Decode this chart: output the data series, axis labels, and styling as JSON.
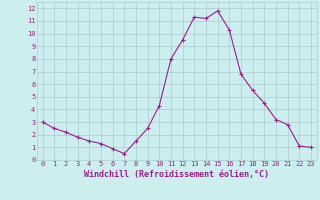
{
  "x": [
    0,
    1,
    2,
    3,
    4,
    5,
    6,
    7,
    8,
    9,
    10,
    11,
    12,
    13,
    14,
    15,
    16,
    17,
    18,
    19,
    20,
    21,
    22,
    23
  ],
  "y": [
    3.0,
    2.5,
    2.2,
    1.8,
    1.5,
    1.3,
    0.9,
    0.5,
    1.5,
    2.5,
    4.3,
    8.0,
    9.5,
    11.3,
    11.2,
    11.8,
    10.3,
    6.8,
    5.5,
    4.5,
    3.2,
    2.8,
    1.1,
    1.0
  ],
  "xlim": [
    -0.5,
    23.5
  ],
  "ylim": [
    0,
    12.5
  ],
  "xticks": [
    0,
    1,
    2,
    3,
    4,
    5,
    6,
    7,
    8,
    9,
    10,
    11,
    12,
    13,
    14,
    15,
    16,
    17,
    18,
    19,
    20,
    21,
    22,
    23
  ],
  "yticks": [
    0,
    1,
    2,
    3,
    4,
    5,
    6,
    7,
    8,
    9,
    10,
    11,
    12
  ],
  "xlabel": "Windchill (Refroidissement éolien,°C)",
  "line_color": "#9b1e8a",
  "marker": "+",
  "background_color": "#cceeee",
  "grid_color": "#aacccc",
  "tick_color": "#9b1e8a",
  "label_color": "#9b1e8a",
  "font": "monospace",
  "tick_fontsize": 5,
  "label_fontsize": 6
}
